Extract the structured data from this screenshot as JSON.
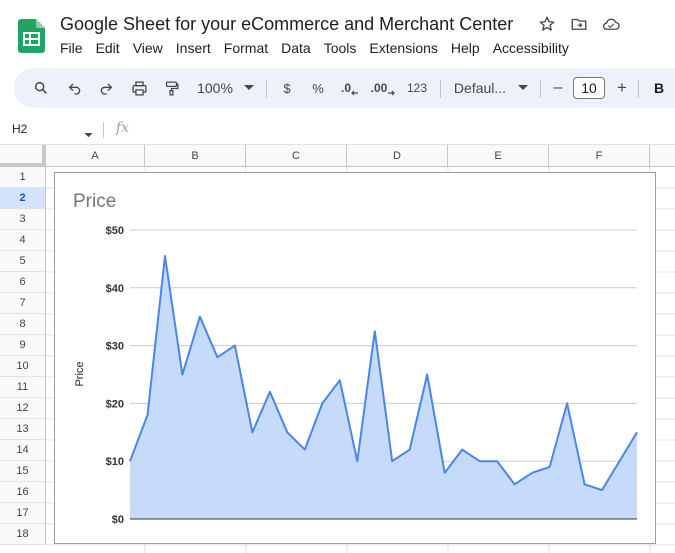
{
  "app": {
    "doc_title": "Google Sheet for your eCommerce and Merchant Center",
    "menu": [
      "File",
      "Edit",
      "View",
      "Insert",
      "Format",
      "Data",
      "Tools",
      "Extensions",
      "Help",
      "Accessibility"
    ]
  },
  "toolbar": {
    "zoom": "100%",
    "currency": "$",
    "percent": "%",
    "decrease_decimal": ".0",
    "increase_decimal": ".00",
    "number_format": "123",
    "font": "Defaul...",
    "font_size": "10",
    "bold": "B",
    "minus": "–",
    "plus": "+"
  },
  "formula_bar": {
    "name_box": "H2",
    "fx": "fx"
  },
  "sheet": {
    "columns": [
      "A",
      "B",
      "C",
      "D",
      "E",
      "F"
    ],
    "rows": [
      "1",
      "2",
      "3",
      "4",
      "5",
      "6",
      "7",
      "8",
      "9",
      "10",
      "11",
      "12",
      "13",
      "14",
      "15",
      "16",
      "17",
      "18"
    ],
    "selected_row": "2"
  },
  "colors": {
    "accent": "#4a86e8",
    "area_fill": "#c6dafa",
    "selected_header": "#d3e3fd"
  },
  "chart_data": {
    "type": "area",
    "title": "Price",
    "ylabel": "Price",
    "xlabel": "",
    "ylim": [
      0,
      50
    ],
    "y_ticks": [
      "$0",
      "$10",
      "$20",
      "$30",
      "$40",
      "$50"
    ],
    "grid": true,
    "series": [
      {
        "values": [
          10,
          18,
          45.5,
          25,
          35,
          28,
          30,
          15,
          22,
          15,
          12,
          20,
          24,
          10,
          32.5,
          10,
          12,
          25,
          8,
          12,
          10,
          10,
          6,
          8,
          9,
          20,
          6,
          5,
          10,
          15
        ]
      }
    ]
  }
}
